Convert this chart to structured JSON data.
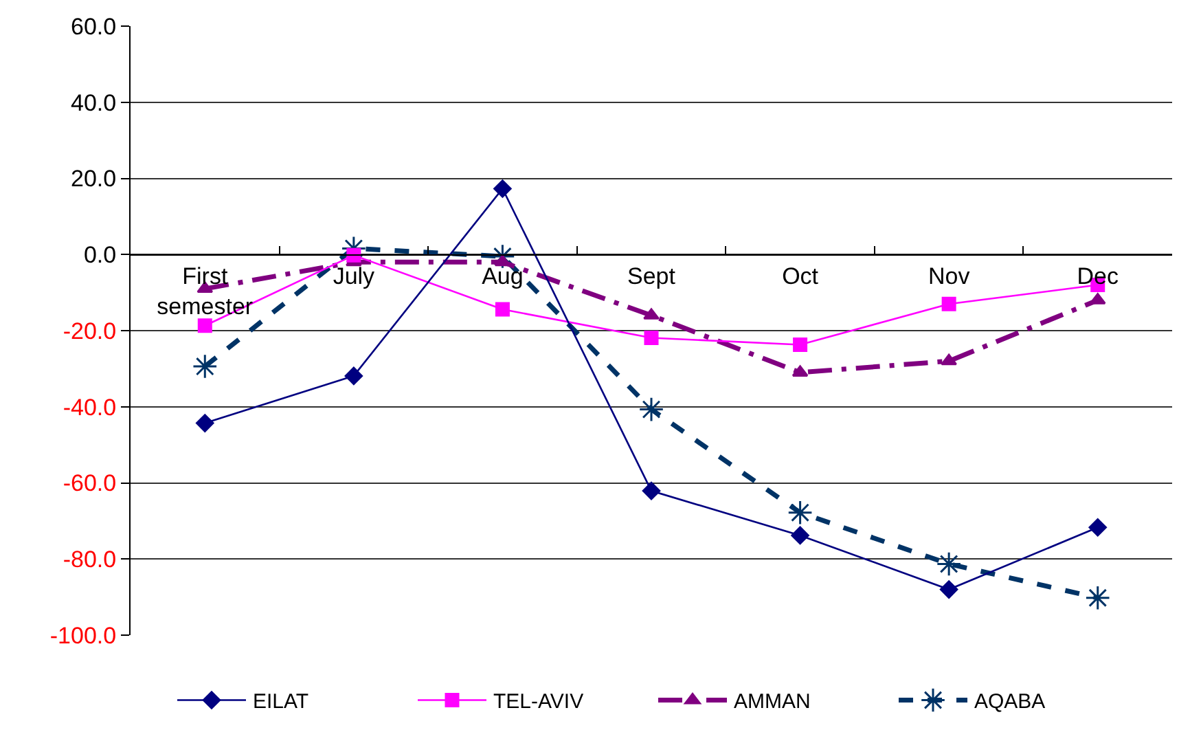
{
  "chart_data": {
    "type": "line",
    "categories": [
      "First semester",
      "July",
      "Aug",
      "Sept",
      "Oct",
      "Nov",
      "Dec"
    ],
    "series": [
      {
        "name": "EILAT",
        "color": "#000080",
        "marker": "diamond",
        "line_style": "solid",
        "values": [
          -44.3,
          -31.9,
          17.3,
          -62.1,
          -73.8,
          -88.0,
          -71.7
        ]
      },
      {
        "name": "TEL-AVIV",
        "color": "#ff00ff",
        "marker": "square",
        "line_style": "solid",
        "values": [
          -18.7,
          -0.2,
          -14.4,
          -21.9,
          -23.7,
          -13.0,
          -8.0
        ]
      },
      {
        "name": "AMMAN",
        "color": "#800080",
        "marker": "triangle",
        "line_style": "dashdot",
        "values": [
          -9.0,
          -2.0,
          -2.0,
          -16.0,
          -31.0,
          -28.0,
          -12.0
        ]
      },
      {
        "name": "AQABA",
        "color": "#003366",
        "marker": "cross",
        "line_style": "dashed",
        "values": [
          -29.4,
          1.6,
          -0.5,
          -40.7,
          -67.8,
          -81.3,
          -90.2
        ]
      }
    ],
    "ylim": [
      -100,
      60
    ],
    "yticks": [
      {
        "value": -100,
        "label": "-100.0"
      },
      {
        "value": -80,
        "label": "-80.0"
      },
      {
        "value": -60,
        "label": "-60.0"
      },
      {
        "value": -40,
        "label": "-40.0"
      },
      {
        "value": -20,
        "label": "-20.0"
      },
      {
        "value": 0,
        "label": "0.0"
      },
      {
        "value": 20,
        "label": "20.0"
      },
      {
        "value": 40,
        "label": "40.0"
      },
      {
        "value": 60,
        "label": "60.0"
      }
    ],
    "grid": "y",
    "legend": "bottom"
  }
}
